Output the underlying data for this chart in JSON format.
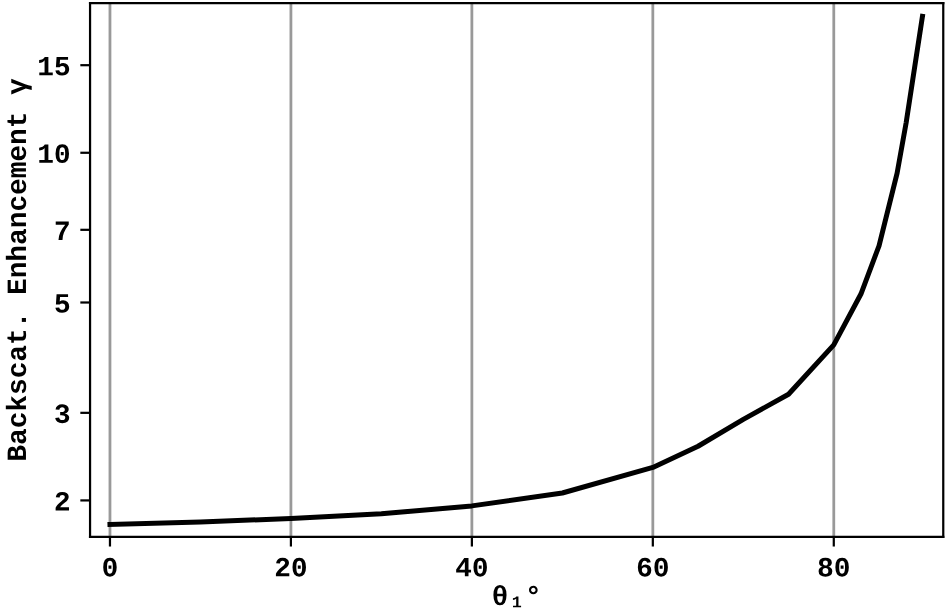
{
  "chart_data": {
    "type": "line",
    "xlabel": "θ₁°",
    "ylabel": "Backscat. Enhancement γ",
    "x": [
      0,
      10,
      20,
      30,
      40,
      50,
      60,
      65,
      70,
      75,
      80,
      83,
      85,
      87,
      88,
      89.8
    ],
    "series": [
      {
        "color": "#000000",
        "values": [
          1.79,
          1.81,
          1.84,
          1.88,
          1.95,
          2.07,
          2.33,
          2.57,
          2.91,
          3.27,
          4.11,
          5.2,
          6.5,
          9.1,
          11.5,
          18.8
        ]
      }
    ],
    "log": "y",
    "xlim": [
      -2.2,
      92.1
    ],
    "ylim": [
      1.69,
      20
    ],
    "xticks": [
      0,
      20,
      40,
      60,
      80
    ],
    "yticks": [
      2,
      3,
      5,
      7,
      10,
      15
    ],
    "grid": "x",
    "marker": "none",
    "line_style": "solid"
  }
}
